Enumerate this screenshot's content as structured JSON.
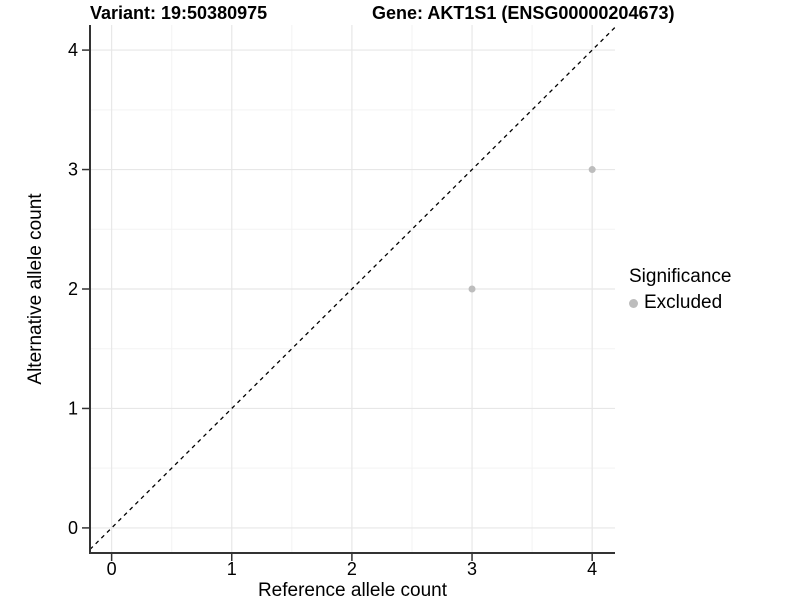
{
  "chart_data": {
    "type": "scatter",
    "titles": {
      "variant": "Variant: 19:50380975",
      "gene": "Gene: AKT1S1 (ENSG00000204673)"
    },
    "xlabel": "Reference allele count",
    "ylabel": "Alternative allele count",
    "xlim": [
      -0.18,
      4.19
    ],
    "ylim": [
      -0.21,
      4.21
    ],
    "xticks": [
      0,
      1,
      2,
      3,
      4
    ],
    "yticks": [
      0,
      1,
      2,
      3,
      4
    ],
    "minor_xticks": [
      0.5,
      1.5,
      2.5,
      3.5
    ],
    "minor_yticks": [
      0.5,
      1.5,
      2.5,
      3.5
    ],
    "grid": true,
    "identity_line": {
      "slope": 1,
      "intercept": 0,
      "style": "dashed",
      "color": "#000000"
    },
    "points": [
      {
        "x": 3,
        "y": 2,
        "significance": "Excluded"
      },
      {
        "x": 4,
        "y": 3,
        "significance": "Excluded"
      }
    ],
    "legend": {
      "title": "Significance",
      "position": "right",
      "entries": [
        {
          "label": "Excluded",
          "color": "#bdbdbd"
        }
      ]
    },
    "colors": {
      "background": "#ffffff",
      "grid_major": "#e7e7e7",
      "grid_minor": "#f3f3f3",
      "axis_line": "#333333",
      "tick": "#333333",
      "text": "#000000",
      "point_excluded": "#bdbdbd"
    }
  }
}
